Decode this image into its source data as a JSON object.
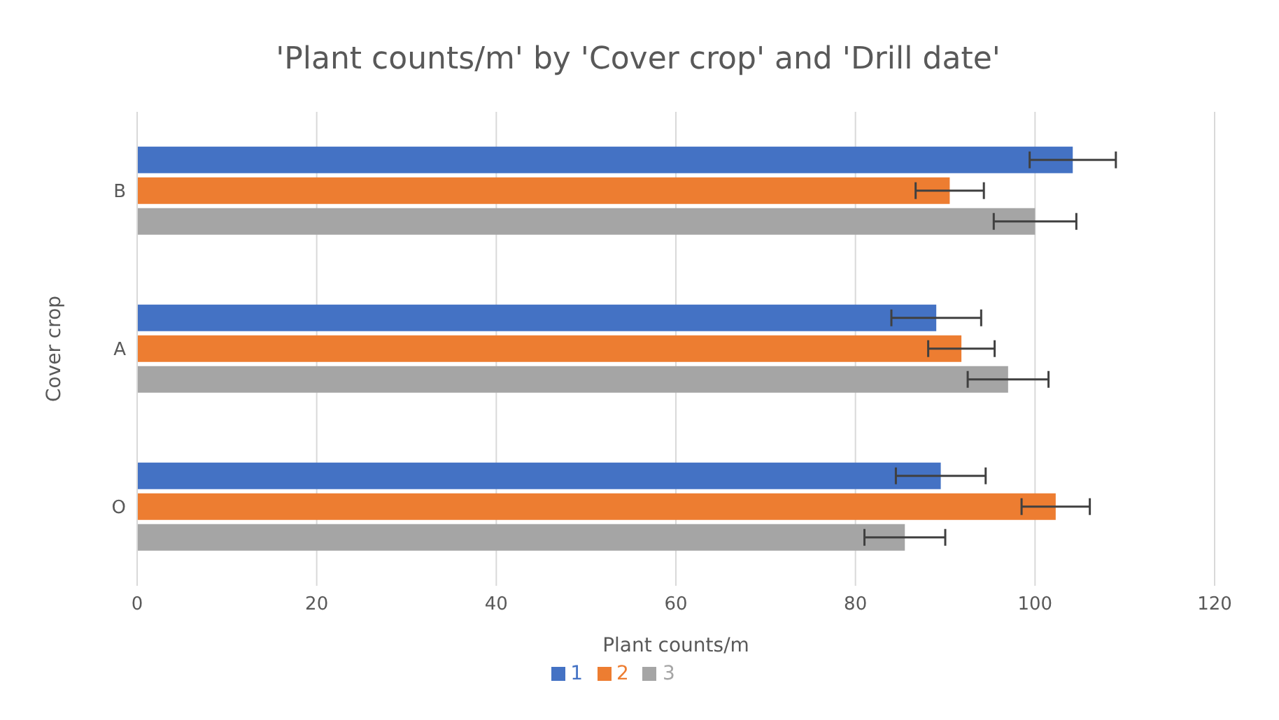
{
  "chart_data": {
    "type": "bar",
    "orientation": "horizontal",
    "title": "'Plant counts/m' by 'Cover crop' and 'Drill date'",
    "xlabel": "Plant counts/m",
    "ylabel": "Cover crop",
    "categories": [
      "B",
      "A",
      "O"
    ],
    "series": [
      {
        "name": "1",
        "color": "#4472c4",
        "values": [
          104.2,
          89.0,
          89.5
        ],
        "errors": [
          4.8,
          5.0,
          5.0
        ]
      },
      {
        "name": "2",
        "color": "#ed7d31",
        "values": [
          90.5,
          91.8,
          102.3
        ],
        "errors": [
          3.8,
          3.7,
          3.8
        ]
      },
      {
        "name": "3",
        "color": "#a5a5a5",
        "values": [
          100.0,
          97.0,
          85.5
        ],
        "errors": [
          4.6,
          4.5,
          4.5
        ]
      }
    ],
    "xlim": [
      0,
      120
    ],
    "xticks": [
      0,
      20,
      40,
      60,
      80,
      100,
      120
    ],
    "grid": "x",
    "legend": "bottom"
  }
}
